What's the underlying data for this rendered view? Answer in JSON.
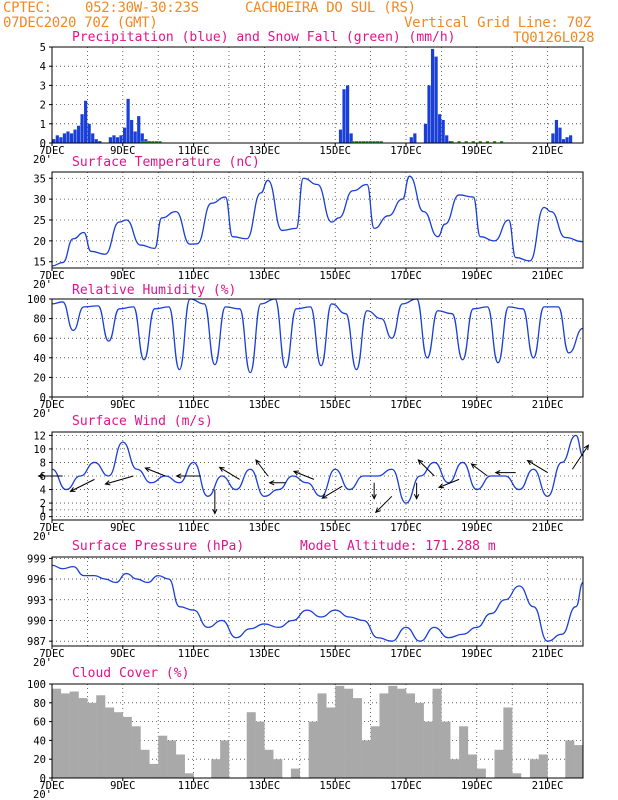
{
  "header": {
    "source": "CPTEC:",
    "coords": "052:30W-30:23S",
    "location": "CACHOEIRA DO SUL (RS)",
    "run": "07DEC2020 70Z (GMT)",
    "vgrid": "Vertical Grid Line: 70Z",
    "model": "TQ0126L028"
  },
  "x_axis": {
    "ticks": [
      "7DEC",
      "9DEC",
      "11DEC",
      "13DEC",
      "15DEC",
      "17DEC",
      "19DEC",
      "21DEC"
    ],
    "year_fragment": "20'"
  },
  "colors": {
    "series": "#1a3fd8",
    "snow": "#1fa81f",
    "title": "#e0148c",
    "header": "#f08a24",
    "cloud": "#a9a9a9"
  },
  "chart_data": [
    {
      "type": "bar",
      "title": "Precipitation (blue) and Snow Fall (green) (mm/h)",
      "ylim": [
        0,
        5
      ],
      "yticks": [
        "0",
        "1",
        "2",
        "3",
        "4",
        "5"
      ],
      "x_unit": "days since 7DEC 00Z",
      "series": [
        {
          "name": "Precipitation",
          "x": [
            0.05,
            0.15,
            0.25,
            0.35,
            0.45,
            0.55,
            0.65,
            0.75,
            0.85,
            0.95,
            1.05,
            1.15,
            1.25,
            1.35,
            1.45,
            1.55,
            1.65,
            1.75,
            1.85,
            1.95,
            2.05,
            2.15,
            2.25,
            2.35,
            2.45,
            2.55,
            2.65,
            2.75,
            8.15,
            8.25,
            8.35,
            8.45,
            10.15,
            10.25,
            10.55,
            10.65,
            10.75,
            10.85,
            10.95,
            11.05,
            11.15,
            11.25,
            14.15,
            14.25,
            14.35,
            14.45,
            14.55,
            14.65
          ],
          "values": [
            0.2,
            0.4,
            0.3,
            0.5,
            0.6,
            0.5,
            0.7,
            0.9,
            1.5,
            2.2,
            1.0,
            0.5,
            0.2,
            0.1,
            0.0,
            0.0,
            0.3,
            0.4,
            0.3,
            0.4,
            0.8,
            2.3,
            1.2,
            0.6,
            1.4,
            0.5,
            0.2,
            0.1,
            0.7,
            2.8,
            3.0,
            0.5,
            0.3,
            0.5,
            1.0,
            3.0,
            4.9,
            4.5,
            1.5,
            1.2,
            0.4,
            0.1,
            0.5,
            1.2,
            0.8,
            0.2,
            0.3,
            0.4
          ]
        },
        {
          "name": "Snow Fall",
          "x": [
            2.55,
            2.65,
            2.75,
            2.85,
            2.95,
            3.05,
            8.5,
            8.6,
            8.7,
            8.8,
            8.9,
            9.0,
            9.1,
            9.2,
            9.3,
            11.3,
            11.5,
            11.7,
            11.9,
            12.1,
            12.3,
            12.5,
            12.7
          ],
          "values": [
            0.1,
            0.1,
            0.1,
            0.1,
            0.1,
            0.1,
            0.1,
            0.1,
            0.1,
            0.1,
            0.1,
            0.1,
            0.1,
            0.1,
            0.1,
            0.1,
            0.1,
            0.1,
            0.1,
            0.1,
            0.1,
            0.1,
            0.1
          ]
        }
      ]
    },
    {
      "type": "line",
      "title": "Surface Temperature (nC)",
      "ylim": [
        13.5,
        36.5
      ],
      "yticks": [
        "15",
        "20",
        "25",
        "30",
        "35"
      ],
      "x_unit": "days since 7DEC 00Z",
      "x": [
        0,
        0.3,
        0.6,
        0.9,
        1.1,
        1.5,
        1.9,
        2.1,
        2.5,
        2.9,
        3.1,
        3.5,
        3.9,
        4.1,
        4.5,
        4.9,
        5.1,
        5.5,
        5.9,
        6.1,
        6.5,
        6.9,
        7.1,
        7.5,
        7.9,
        8.1,
        8.5,
        8.9,
        9.1,
        9.5,
        9.9,
        10.1,
        10.5,
        10.9,
        11.1,
        11.5,
        11.9,
        12.1,
        12.5,
        12.9,
        13.1,
        13.5,
        13.9,
        14.1,
        14.5,
        15.0
      ],
      "values": [
        14,
        14.8,
        20.5,
        22,
        17.5,
        16.8,
        24.5,
        25,
        19,
        18.2,
        25.5,
        27,
        19.2,
        19.3,
        29,
        30.5,
        21,
        20.5,
        31.5,
        34.5,
        22.5,
        23,
        35,
        33.5,
        24.5,
        25.5,
        32,
        33.5,
        23,
        26,
        30,
        35.5,
        27,
        21,
        24,
        31,
        30.5,
        21,
        20,
        25,
        16,
        15.2,
        28,
        27,
        20.8,
        19.8
      ]
    },
    {
      "type": "line",
      "title": "Relative Humidity (%)",
      "ylim": [
        0,
        100
      ],
      "yticks": [
        "0",
        "20",
        "40",
        "60",
        "80",
        "100"
      ],
      "x_unit": "days since 7DEC 00Z",
      "x": [
        0,
        0.3,
        0.6,
        0.9,
        1.3,
        1.6,
        1.9,
        2.3,
        2.6,
        2.9,
        3.3,
        3.6,
        3.9,
        4.3,
        4.6,
        4.9,
        5.3,
        5.6,
        5.9,
        6.3,
        6.6,
        6.9,
        7.3,
        7.6,
        7.9,
        8.3,
        8.6,
        8.9,
        9.3,
        9.6,
        9.9,
        10.3,
        10.6,
        10.9,
        11.3,
        11.6,
        11.9,
        12.3,
        12.6,
        12.9,
        13.3,
        13.6,
        13.9,
        14.3,
        14.6,
        15.0
      ],
      "values": [
        95,
        97,
        68,
        92,
        93,
        57,
        90,
        92,
        38,
        90,
        92,
        28,
        100,
        95,
        33,
        92,
        90,
        25,
        95,
        100,
        30,
        90,
        92,
        32,
        95,
        85,
        28,
        88,
        80,
        60,
        95,
        100,
        40,
        88,
        85,
        38,
        90,
        92,
        35,
        92,
        90,
        40,
        92,
        92,
        45,
        70
      ]
    },
    {
      "type": "line",
      "title": "Surface Wind (m/s)",
      "ylim": [
        -0.5,
        12.5
      ],
      "yticks": [
        "0",
        "1",
        "2",
        "4",
        "6",
        "8",
        "10",
        "12"
      ],
      "x_unit": "days since 7DEC 00Z",
      "x": [
        0,
        0.4,
        0.8,
        1.2,
        1.6,
        2.0,
        2.4,
        2.8,
        3.2,
        3.6,
        4.0,
        4.4,
        4.8,
        5.2,
        5.6,
        6.0,
        6.4,
        6.8,
        7.2,
        7.6,
        8.0,
        8.4,
        8.8,
        9.2,
        9.6,
        10.0,
        10.4,
        10.8,
        11.2,
        11.6,
        12.0,
        12.4,
        12.8,
        13.2,
        13.6,
        14.0,
        14.4,
        14.8,
        15.0
      ],
      "values": [
        7,
        4,
        6,
        8,
        6,
        11,
        7,
        5,
        6,
        5,
        8,
        3,
        6,
        4,
        7,
        3,
        4,
        6,
        5,
        3,
        7,
        4,
        6,
        6,
        7,
        2,
        6,
        8,
        5,
        8,
        4,
        6,
        6,
        4,
        7,
        3,
        8,
        12,
        9
      ],
      "vectors": [
        [
          0.3,
          6,
          -6,
          0
        ],
        [
          1.2,
          5.5,
          -6,
          -3
        ],
        [
          2.3,
          6,
          -7,
          -2
        ],
        [
          3.2,
          6,
          -5,
          2
        ],
        [
          4.2,
          6,
          -6,
          0
        ],
        [
          4.6,
          4,
          0,
          -6
        ],
        [
          5.3,
          5.5,
          -5,
          3
        ],
        [
          6.1,
          6,
          -3,
          4
        ],
        [
          6.6,
          5,
          -4,
          0
        ],
        [
          7.4,
          5.5,
          -5,
          2
        ],
        [
          8.2,
          4.5,
          -5,
          -3
        ],
        [
          9.1,
          5,
          0,
          -4
        ],
        [
          9.6,
          3,
          -4,
          -4
        ],
        [
          10.3,
          5,
          0,
          -4
        ],
        [
          10.8,
          6,
          -4,
          4
        ],
        [
          11.5,
          5.5,
          -5,
          -2
        ],
        [
          12.3,
          6,
          -4,
          3
        ],
        [
          13.1,
          6.5,
          -5,
          0
        ],
        [
          14.0,
          6.5,
          -5,
          3
        ],
        [
          14.7,
          7,
          4,
          6
        ]
      ]
    },
    {
      "type": "line",
      "title": "Surface Pressure (hPa)",
      "subtitle": "Model Altitude: 171.288 m",
      "ylim": [
        986.3,
        999.2
      ],
      "yticks": [
        "987",
        "990",
        "993",
        "996",
        "999"
      ],
      "x_unit": "days since 7DEC 00Z",
      "x": [
        0,
        0.3,
        0.6,
        0.9,
        1.2,
        1.5,
        1.8,
        2.1,
        2.4,
        2.7,
        3.0,
        3.3,
        3.6,
        4.0,
        4.4,
        4.8,
        5.2,
        5.6,
        6.0,
        6.4,
        6.8,
        7.2,
        7.6,
        8.0,
        8.4,
        8.8,
        9.2,
        9.6,
        10.0,
        10.4,
        10.8,
        11.2,
        11.6,
        12.0,
        12.4,
        12.8,
        13.2,
        13.6,
        14.0,
        14.4,
        14.8,
        15.0
      ],
      "values": [
        998,
        997.5,
        997.8,
        996.5,
        996.5,
        996,
        995.5,
        996.8,
        996,
        995.5,
        996.5,
        996,
        992,
        991.5,
        989,
        990,
        987.5,
        988.8,
        989.5,
        989,
        990,
        991.5,
        990.5,
        991.5,
        990.5,
        990,
        987.5,
        987,
        989,
        987,
        989,
        987.5,
        988,
        989,
        991,
        993,
        995,
        992,
        987,
        988,
        992,
        995.5
      ]
    },
    {
      "type": "bar",
      "title": "Cloud Cover (%)",
      "ylim": [
        0,
        100
      ],
      "yticks": [
        "0",
        "20",
        "40",
        "60",
        "80",
        "100"
      ],
      "x_unit": "days since 7DEC 00Z",
      "x": [
        0,
        0.25,
        0.5,
        0.75,
        1.0,
        1.25,
        1.5,
        1.75,
        2.0,
        2.25,
        2.5,
        2.75,
        3.0,
        3.25,
        3.5,
        3.75,
        4.0,
        4.25,
        4.5,
        4.75,
        5.0,
        5.25,
        5.5,
        5.75,
        6.0,
        6.25,
        6.5,
        6.75,
        7.0,
        7.25,
        7.5,
        7.75,
        8.0,
        8.25,
        8.5,
        8.75,
        9.0,
        9.25,
        9.5,
        9.75,
        10.0,
        10.25,
        10.5,
        10.75,
        11.0,
        11.25,
        11.5,
        11.75,
        12.0,
        12.25,
        12.5,
        12.75,
        13.0,
        13.25,
        13.5,
        13.75,
        14.0,
        14.25,
        14.5,
        14.75
      ],
      "values": [
        95,
        90,
        92,
        85,
        80,
        88,
        75,
        70,
        65,
        55,
        30,
        15,
        45,
        40,
        25,
        5,
        0,
        0,
        20,
        40,
        0,
        0,
        70,
        60,
        30,
        20,
        0,
        10,
        0,
        60,
        90,
        75,
        98,
        95,
        85,
        40,
        55,
        90,
        98,
        95,
        90,
        80,
        60,
        95,
        60,
        20,
        55,
        25,
        10,
        0,
        30,
        75,
        5,
        0,
        20,
        25,
        0,
        0,
        40,
        35
      ]
    }
  ]
}
